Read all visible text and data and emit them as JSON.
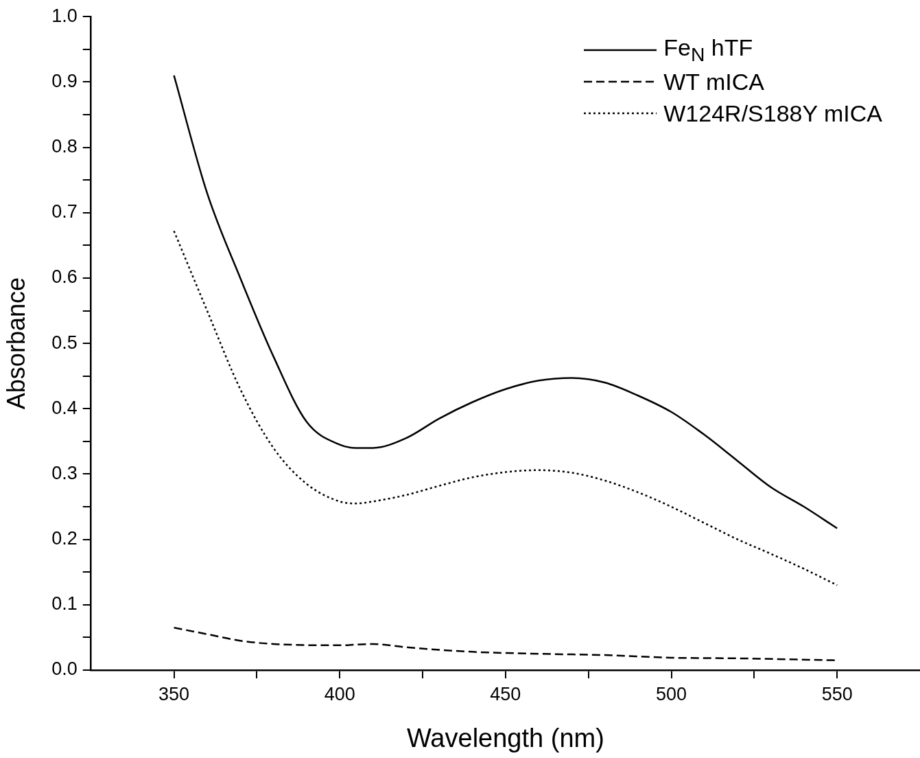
{
  "chart_data": {
    "type": "line",
    "xlabel": "Wavelength (nm)",
    "ylabel": "Absorbance",
    "xlim": [
      325,
      575
    ],
    "ylim": [
      0,
      1
    ],
    "xticks": [
      350,
      {
        "value": 375,
        "label": null
      },
      400,
      {
        "value": 425,
        "label": null
      },
      450,
      {
        "value": 475,
        "label": null
      },
      500,
      {
        "value": 525,
        "label": null
      },
      550
    ],
    "yticks": [
      {
        "value": 0,
        "label": "0.0"
      },
      {
        "value": 0.05,
        "label": null
      },
      {
        "value": 0.1,
        "label": "0.1"
      },
      {
        "value": 0.15,
        "label": null
      },
      {
        "value": 0.2,
        "label": "0.2"
      },
      {
        "value": 0.25,
        "label": null
      },
      {
        "value": 0.3,
        "label": "0.3"
      },
      {
        "value": 0.35,
        "label": null
      },
      {
        "value": 0.4,
        "label": "0.4"
      },
      {
        "value": 0.45,
        "label": null
      },
      {
        "value": 0.5,
        "label": "0.5"
      },
      {
        "value": 0.55,
        "label": null
      },
      {
        "value": 0.6,
        "label": "0.6"
      },
      {
        "value": 0.65,
        "label": null
      },
      {
        "value": 0.7,
        "label": "0.7"
      },
      {
        "value": 0.75,
        "label": null
      },
      {
        "value": 0.8,
        "label": "0.8"
      },
      {
        "value": 0.85,
        "label": null
      },
      {
        "value": 0.9,
        "label": "0.9"
      },
      {
        "value": 0.95,
        "label": null
      },
      {
        "value": 1,
        "label": "1.0"
      }
    ],
    "grid": false,
    "legend": "top right",
    "marker": "none",
    "series": [
      {
        "name": "Fe$_{N}$ hTF",
        "color": "#000000",
        "line_style": "solid",
        "x": [
          350,
          360,
          370,
          380,
          390,
          400,
          405,
          410,
          420,
          430,
          440,
          450,
          460,
          470,
          480,
          490,
          500,
          510,
          520,
          530,
          540,
          550
        ],
        "values": [
          0.91,
          0.73,
          0.6,
          0.48,
          0.38,
          0.345,
          0.34,
          0.34,
          0.355,
          0.385,
          0.41,
          0.43,
          0.443,
          0.447,
          0.44,
          0.42,
          0.395,
          0.36,
          0.32,
          0.28,
          0.25,
          0.217
        ]
      },
      {
        "name": "WT mICA",
        "color": "#000000",
        "line_style": "dashed",
        "x": [
          350,
          360,
          370,
          380,
          400,
          410,
          420,
          440,
          460,
          480,
          500,
          520,
          550
        ],
        "values": [
          0.065,
          0.055,
          0.045,
          0.04,
          0.038,
          0.04,
          0.035,
          0.028,
          0.025,
          0.023,
          0.019,
          0.018,
          0.015
        ]
      },
      {
        "name": "W124R/S188Y mICA",
        "color": "#000000",
        "line_style": "dotted",
        "x": [
          350,
          360,
          370,
          380,
          390,
          400,
          405,
          410,
          420,
          430,
          440,
          450,
          460,
          470,
          480,
          490,
          500,
          510,
          520,
          530,
          540,
          550
        ],
        "values": [
          0.672,
          0.55,
          0.43,
          0.34,
          0.285,
          0.258,
          0.255,
          0.258,
          0.268,
          0.282,
          0.295,
          0.303,
          0.306,
          0.302,
          0.29,
          0.272,
          0.25,
          0.225,
          0.2,
          0.178,
          0.155,
          0.13
        ]
      }
    ]
  }
}
